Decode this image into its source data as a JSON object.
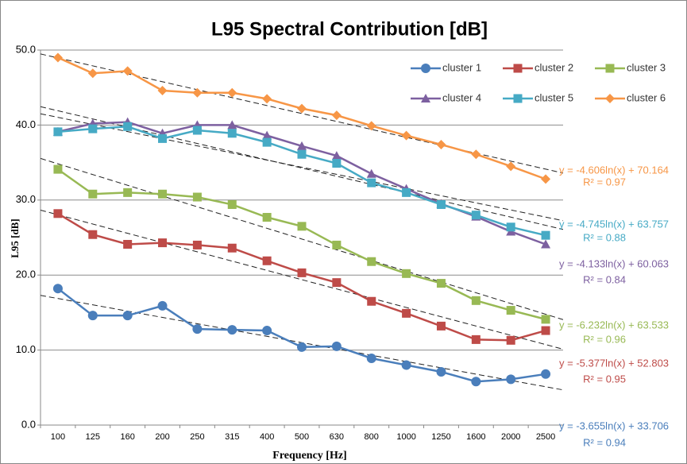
{
  "chart_data": {
    "type": "line",
    "title": "L95 Spectral Contribution [dB]",
    "x_label": "Frequency [Hz]",
    "y_label": "L95 [dB]",
    "categories": [
      "100",
      "125",
      "160",
      "200",
      "250",
      "315",
      "400",
      "500",
      "630",
      "800",
      "1000",
      "1250",
      "1600",
      "2000",
      "2500"
    ],
    "ylim": [
      0,
      50
    ],
    "yticks": [
      {
        "value": 0,
        "label": "0.0"
      },
      {
        "value": 10,
        "label": "10.0"
      },
      {
        "value": 20,
        "label": "20.0"
      },
      {
        "value": 30,
        "label": "30.0"
      },
      {
        "value": 40,
        "label": "40.0"
      },
      {
        "value": 50,
        "label": "50.0"
      }
    ],
    "grid": true,
    "legend": "top-right",
    "series": [
      {
        "name": "cluster 1",
        "color": "#4a7ebb",
        "marker": "circle",
        "values": [
          18.2,
          14.6,
          14.6,
          15.9,
          12.8,
          12.7,
          12.6,
          10.4,
          10.5,
          8.9,
          8.0,
          7.1,
          5.8,
          6.1,
          6.8
        ],
        "trendline": {
          "slope": -3.655,
          "intercept": 33.706,
          "equation": "y = -3.655ln(x) + 33.706",
          "r2": "R² = 0.94"
        }
      },
      {
        "name": "cluster 2",
        "color": "#be4b48",
        "marker": "square",
        "values": [
          28.2,
          25.4,
          24.1,
          24.3,
          24.0,
          23.6,
          21.9,
          20.3,
          19.0,
          16.5,
          14.9,
          13.2,
          11.4,
          11.3,
          12.6
        ],
        "trendline": {
          "slope": -5.377,
          "intercept": 52.803,
          "equation": "y = -5.377ln(x) + 52.803",
          "r2": "R² = 0.95"
        }
      },
      {
        "name": "cluster 3",
        "color": "#98b954",
        "marker": "square",
        "values": [
          34.1,
          30.8,
          31.0,
          30.8,
          30.4,
          29.4,
          27.7,
          26.5,
          24.0,
          21.8,
          20.2,
          18.9,
          16.6,
          15.3,
          14.1
        ],
        "trendline": {
          "slope": -6.232,
          "intercept": 63.533,
          "equation": "y = -6.232ln(x) + 63.533",
          "r2": "R² = 0.96"
        }
      },
      {
        "name": "cluster 4",
        "color": "#7d60a0",
        "marker": "triangle",
        "values": [
          39.1,
          40.2,
          40.4,
          38.9,
          40.0,
          40.0,
          38.6,
          37.2,
          35.9,
          33.5,
          31.5,
          29.5,
          27.8,
          25.8,
          24.1
        ],
        "trendline": {
          "slope": -4.133,
          "intercept": 60.063,
          "equation": "y = -4.133ln(x) + 60.063",
          "r2": "R² = 0.84"
        }
      },
      {
        "name": "cluster 5",
        "color": "#46aac5",
        "marker": "square",
        "values": [
          39.1,
          39.5,
          39.8,
          38.2,
          39.3,
          38.9,
          37.7,
          36.1,
          34.9,
          32.3,
          31.0,
          29.4,
          28.0,
          26.4,
          25.3
        ],
        "trendline": {
          "slope": -4.745,
          "intercept": 63.757,
          "equation": "y = -4.745ln(x) + 63.757",
          "r2": "R² = 0.88"
        }
      },
      {
        "name": "cluster 6",
        "color": "#f79646",
        "marker": "diamond",
        "values": [
          49.0,
          46.9,
          47.2,
          44.6,
          44.3,
          44.3,
          43.5,
          42.2,
          41.3,
          39.9,
          38.6,
          37.4,
          36.1,
          34.5,
          32.8
        ],
        "trendline": {
          "slope": -4.606,
          "intercept": 70.164,
          "equation": "y = -4.606ln(x) + 70.164",
          "r2": "R² = 0.97"
        }
      }
    ]
  }
}
